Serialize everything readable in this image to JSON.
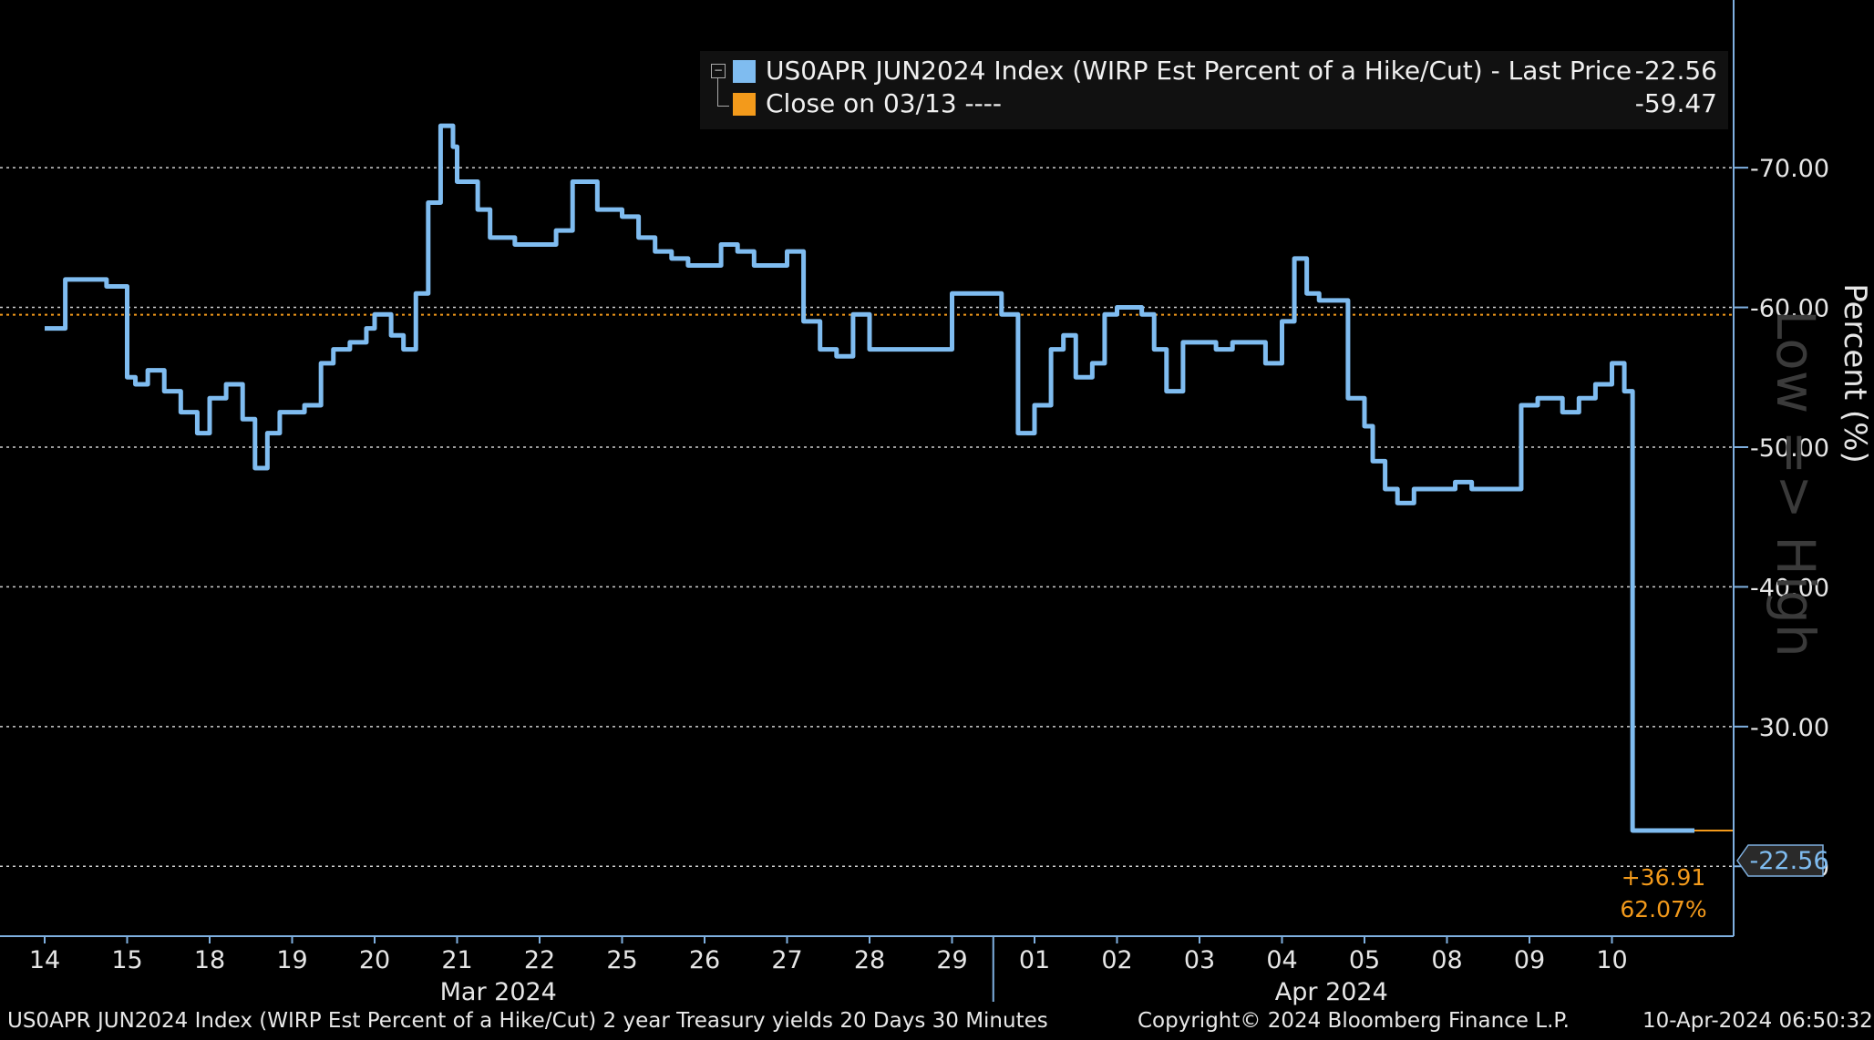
{
  "legend": {
    "series1": "US0APR JUN2024 Index (WIRP Est Percent of a Hike/Cut) - Last Price",
    "series1_value": "-22.56",
    "series2": "Close on 03/13 ----",
    "series2_value": "-59.47"
  },
  "axis": {
    "ylabel": "Percent (%)",
    "watermark": "Low => High",
    "last_value_badge": "-22.56",
    "change_abs": "+36.91",
    "change_pct": "62.07%"
  },
  "footer": {
    "left": "US0APR JUN2024 Index (WIRP Est Percent of a Hike/Cut) 2 year Treasury yields 20 Days 30 Minutes",
    "center": "Copyright© 2024 Bloomberg Finance L.P.",
    "right": "10-Apr-2024 06:50:32"
  },
  "chart_data": {
    "type": "line",
    "title": "",
    "ylabel": "Percent (%)",
    "ylim": [
      -82,
      -15
    ],
    "y_axis_side": "right",
    "y_axis_inverted_values": true,
    "yticks": [
      "-70.00",
      "-60.00",
      "-50.00",
      "-40.00",
      "-30.00",
      "-20.00"
    ],
    "ytick_values": [
      -70,
      -60,
      -50,
      -40,
      -30,
      -20
    ],
    "grid": "horizontal-dotted",
    "legend_position": "top-right",
    "xticks": [
      "14",
      "15",
      "18",
      "19",
      "20",
      "21",
      "22",
      "25",
      "26",
      "27",
      "28",
      "29",
      "01",
      "02",
      "03",
      "04",
      "05",
      "08",
      "09",
      "10"
    ],
    "month_labels": [
      "Mar 2024",
      "Apr 2024"
    ],
    "colors": {
      "series": "#7fbcf0",
      "reference": "#f39a1b",
      "axis": "#7fb0e0",
      "grid": "#d0d0d0"
    },
    "reference_line": {
      "name": "Close on 03/13",
      "value": -59.47
    },
    "series": [
      {
        "name": "US0APR JUN2024 Index (WIRP Est Percent of a Hike/Cut)",
        "x": [
          0,
          0.25,
          0.5,
          0.75,
          1.0,
          1.1,
          1.25,
          1.45,
          1.65,
          1.85,
          2.0,
          2.2,
          2.4,
          2.55,
          2.7,
          2.85,
          3.0,
          3.15,
          3.35,
          3.5,
          3.7,
          3.9,
          4.0,
          4.2,
          4.35,
          4.5,
          4.65,
          4.8,
          4.95,
          5.0,
          5.1,
          5.25,
          5.4,
          5.55,
          5.7,
          5.85,
          6.0,
          6.2,
          6.4,
          6.55,
          6.7,
          6.85,
          7.0,
          7.2,
          7.4,
          7.6,
          7.8,
          8.0,
          8.2,
          8.4,
          8.6,
          8.8,
          9.0,
          9.2,
          9.4,
          9.6,
          9.8,
          10.0,
          10.2,
          10.4,
          10.6,
          10.8,
          11.0,
          11.2,
          11.4,
          11.6,
          11.8,
          12.0,
          12.2,
          12.35,
          12.5,
          12.7,
          12.85,
          13.0,
          13.15,
          13.3,
          13.45,
          13.6,
          13.8,
          14.0,
          14.2,
          14.4,
          14.6,
          14.8,
          15.0,
          15.15,
          15.3,
          15.45,
          15.6,
          15.8,
          16.0,
          16.1,
          16.25,
          16.4,
          16.6,
          16.75,
          16.9,
          17.1,
          17.3,
          17.5,
          17.7,
          17.9,
          18.1,
          18.25,
          18.4,
          18.6,
          18.8,
          19.0,
          19.15,
          19.25,
          19.35,
          19.45,
          19.7,
          20.0
        ],
        "values": [
          -58.5,
          -62.0,
          -62.0,
          -61.5,
          -55.0,
          -54.5,
          -55.5,
          -54.0,
          -52.5,
          -51.0,
          -53.5,
          -54.5,
          -52.0,
          -48.5,
          -51.0,
          -52.5,
          -52.5,
          -53.0,
          -56.0,
          -57.0,
          -57.5,
          -58.5,
          -59.5,
          -58.0,
          -57.0,
          -61.0,
          -67.5,
          -73.0,
          -71.5,
          -69.0,
          -69.0,
          -67.0,
          -65.0,
          -65.0,
          -64.5,
          -64.5,
          -64.5,
          -65.5,
          -69.0,
          -69.0,
          -67.0,
          -67.0,
          -66.5,
          -65.0,
          -64.0,
          -63.5,
          -63.0,
          -63.0,
          -64.5,
          -64.0,
          -63.0,
          -63.0,
          -64.0,
          -59.0,
          -57.0,
          -56.5,
          -59.5,
          -57.0,
          -57.0,
          -57.0,
          -57.0,
          -57.0,
          -61.0,
          -61.0,
          -61.0,
          -59.5,
          -51.0,
          -53.0,
          -57.0,
          -58.0,
          -55.0,
          -56.0,
          -59.5,
          -60.0,
          -60.0,
          -59.5,
          -57.0,
          -54.0,
          -57.5,
          -57.5,
          -57.0,
          -57.5,
          -57.5,
          -56.0,
          -59.0,
          -63.5,
          -61.0,
          -60.5,
          -60.5,
          -53.5,
          -51.5,
          -49.0,
          -47.0,
          -46.0,
          -47.0,
          -47.0,
          -47.0,
          -47.5,
          -47.0,
          -47.0,
          -47.0,
          -53.0,
          -53.5,
          -53.5,
          -52.5,
          -53.5,
          -54.5,
          -56.0,
          -54.0,
          -22.56,
          -22.56,
          -22.56,
          -22.56,
          -22.56
        ]
      }
    ]
  }
}
